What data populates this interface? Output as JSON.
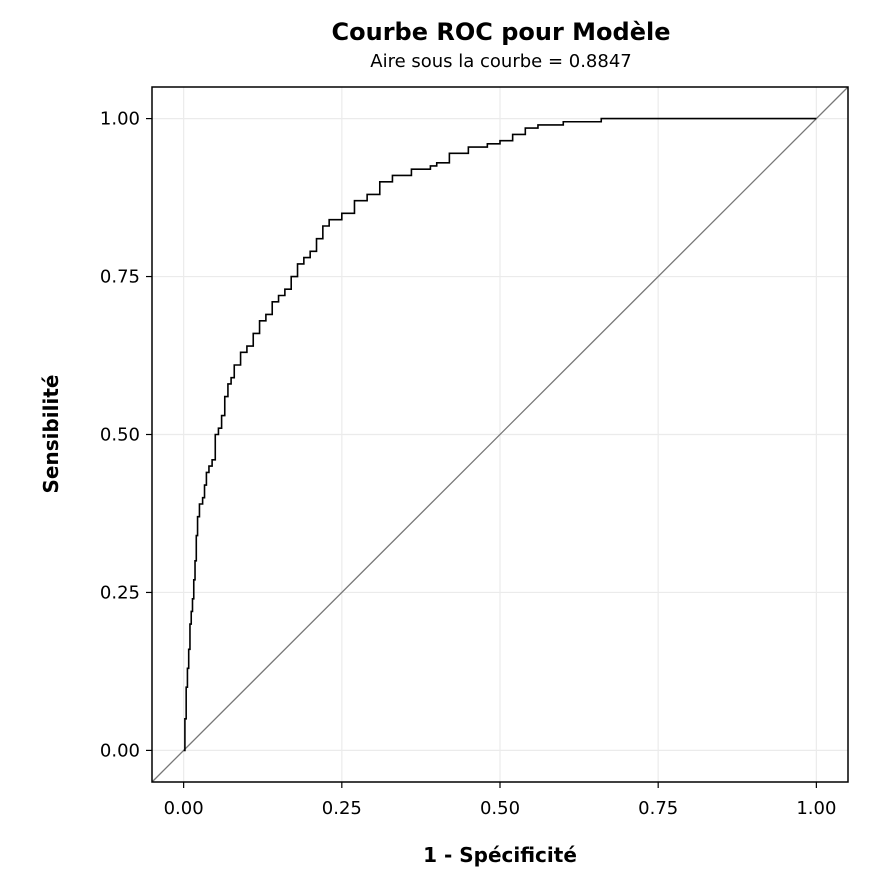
{
  "chart_data": {
    "type": "line",
    "title": "Courbe ROC pour Modèle",
    "subtitle": "Aire sous la courbe = 0.8847",
    "xlabel": "1 - Spécificité",
    "ylabel": "Sensibilité",
    "xlim": [
      -0.05,
      1.05
    ],
    "ylim": [
      -0.05,
      1.05
    ],
    "xticks": [
      0.0,
      0.25,
      0.5,
      0.75,
      1.0
    ],
    "yticks": [
      0.0,
      0.25,
      0.5,
      0.75,
      1.0
    ],
    "xtick_labels": [
      "0.00",
      "0.25",
      "0.50",
      "0.75",
      "1.00"
    ],
    "ytick_labels": [
      "0.00",
      "0.25",
      "0.50",
      "0.75",
      "1.00"
    ],
    "grid": true,
    "legend": "none",
    "colors": {
      "roc": "#000000",
      "diagonal": "#777777",
      "grid": "#ebebeb",
      "frame": "#000000"
    },
    "series": [
      {
        "values": [
          [
            0.0,
            0.0
          ],
          [
            0.002,
            0.05
          ],
          [
            0.004,
            0.1
          ],
          [
            0.006,
            0.13
          ],
          [
            0.008,
            0.16
          ],
          [
            0.01,
            0.2
          ],
          [
            0.012,
            0.22
          ],
          [
            0.014,
            0.24
          ],
          [
            0.016,
            0.27
          ],
          [
            0.018,
            0.3
          ],
          [
            0.02,
            0.34
          ],
          [
            0.022,
            0.37
          ],
          [
            0.025,
            0.39
          ],
          [
            0.03,
            0.4
          ],
          [
            0.033,
            0.42
          ],
          [
            0.036,
            0.44
          ],
          [
            0.04,
            0.45
          ],
          [
            0.045,
            0.46
          ],
          [
            0.05,
            0.5
          ],
          [
            0.055,
            0.51
          ],
          [
            0.06,
            0.53
          ],
          [
            0.065,
            0.56
          ],
          [
            0.07,
            0.58
          ],
          [
            0.075,
            0.59
          ],
          [
            0.08,
            0.61
          ],
          [
            0.09,
            0.63
          ],
          [
            0.1,
            0.64
          ],
          [
            0.11,
            0.66
          ],
          [
            0.12,
            0.68
          ],
          [
            0.13,
            0.69
          ],
          [
            0.14,
            0.71
          ],
          [
            0.15,
            0.72
          ],
          [
            0.16,
            0.73
          ],
          [
            0.17,
            0.75
          ],
          [
            0.18,
            0.77
          ],
          [
            0.19,
            0.78
          ],
          [
            0.2,
            0.79
          ],
          [
            0.21,
            0.81
          ],
          [
            0.22,
            0.83
          ],
          [
            0.23,
            0.84
          ],
          [
            0.25,
            0.85
          ],
          [
            0.27,
            0.87
          ],
          [
            0.29,
            0.88
          ],
          [
            0.31,
            0.9
          ],
          [
            0.33,
            0.91
          ],
          [
            0.36,
            0.92
          ],
          [
            0.39,
            0.925
          ],
          [
            0.4,
            0.93
          ],
          [
            0.42,
            0.945
          ],
          [
            0.45,
            0.955
          ],
          [
            0.48,
            0.96
          ],
          [
            0.5,
            0.965
          ],
          [
            0.52,
            0.975
          ],
          [
            0.54,
            0.985
          ],
          [
            0.56,
            0.99
          ],
          [
            0.6,
            0.995
          ],
          [
            0.66,
            1.0
          ],
          [
            0.75,
            1.0
          ],
          [
            0.9,
            1.0
          ],
          [
            1.0,
            1.0
          ]
        ]
      },
      {
        "values": [
          [
            -0.05,
            -0.05
          ],
          [
            1.05,
            1.05
          ]
        ]
      }
    ]
  }
}
